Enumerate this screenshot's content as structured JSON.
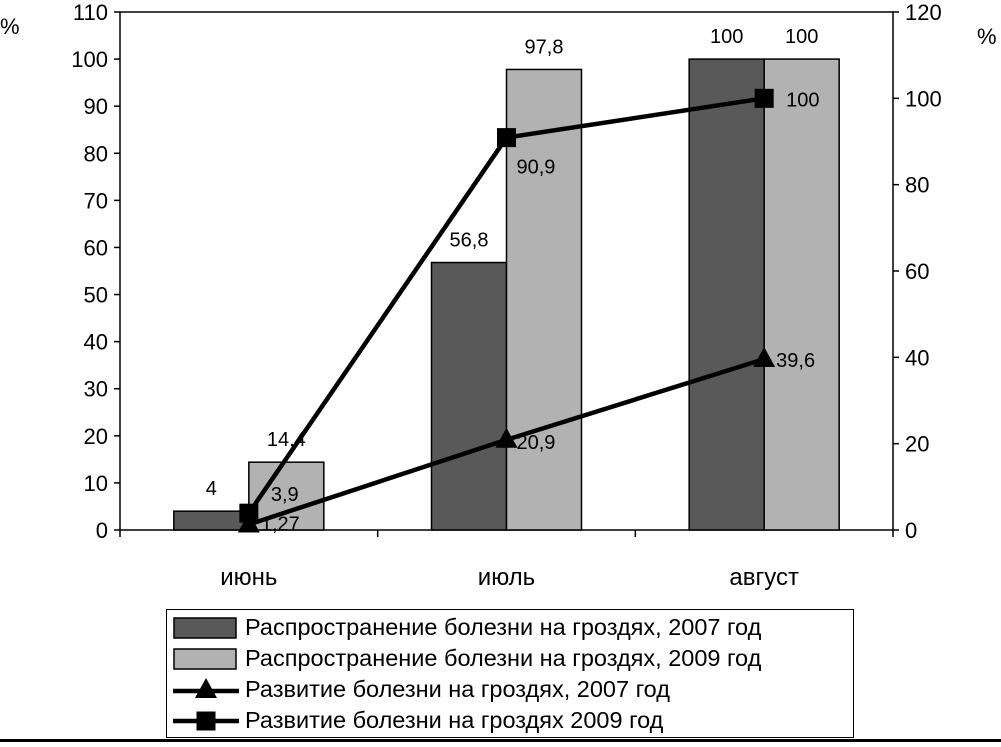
{
  "chart_data": {
    "type": "bar",
    "categories": [
      "июнь",
      "июль",
      "август"
    ],
    "series": [
      {
        "name": "Распространение болезни на гроздях, 2007 год",
        "kind": "bar",
        "axis": "left",
        "values": [
          4,
          56.8,
          100
        ],
        "labels": [
          "4",
          "56,8",
          "100"
        ],
        "color": "#595959"
      },
      {
        "name": "Распространение болезни на гроздях, 2009 год",
        "kind": "bar",
        "axis": "left",
        "values": [
          14.4,
          97.8,
          100
        ],
        "labels": [
          "14,4",
          "97,8",
          "100"
        ],
        "color": "#b2b2b2"
      },
      {
        "name": "Развитие болезни на гроздях, 2007 год",
        "kind": "line",
        "axis": "right",
        "marker": "triangle",
        "values": [
          1.27,
          20.9,
          39.6
        ],
        "labels": [
          "1,27",
          "20,9",
          "39,6"
        ],
        "color": "#000000"
      },
      {
        "name": "Развитие болезни на гроздях 2009 год",
        "kind": "line",
        "axis": "right",
        "marker": "square",
        "values": [
          3.9,
          90.9,
          100
        ],
        "labels": [
          "3,9",
          "90,9",
          "100"
        ],
        "color": "#000000"
      }
    ],
    "y_left": {
      "unit": "%",
      "min": 0,
      "max": 110,
      "step": 10
    },
    "y_right": {
      "unit": "%",
      "min": 0,
      "max": 120,
      "step": 20
    },
    "grid": false,
    "legend_position": "bottom"
  }
}
